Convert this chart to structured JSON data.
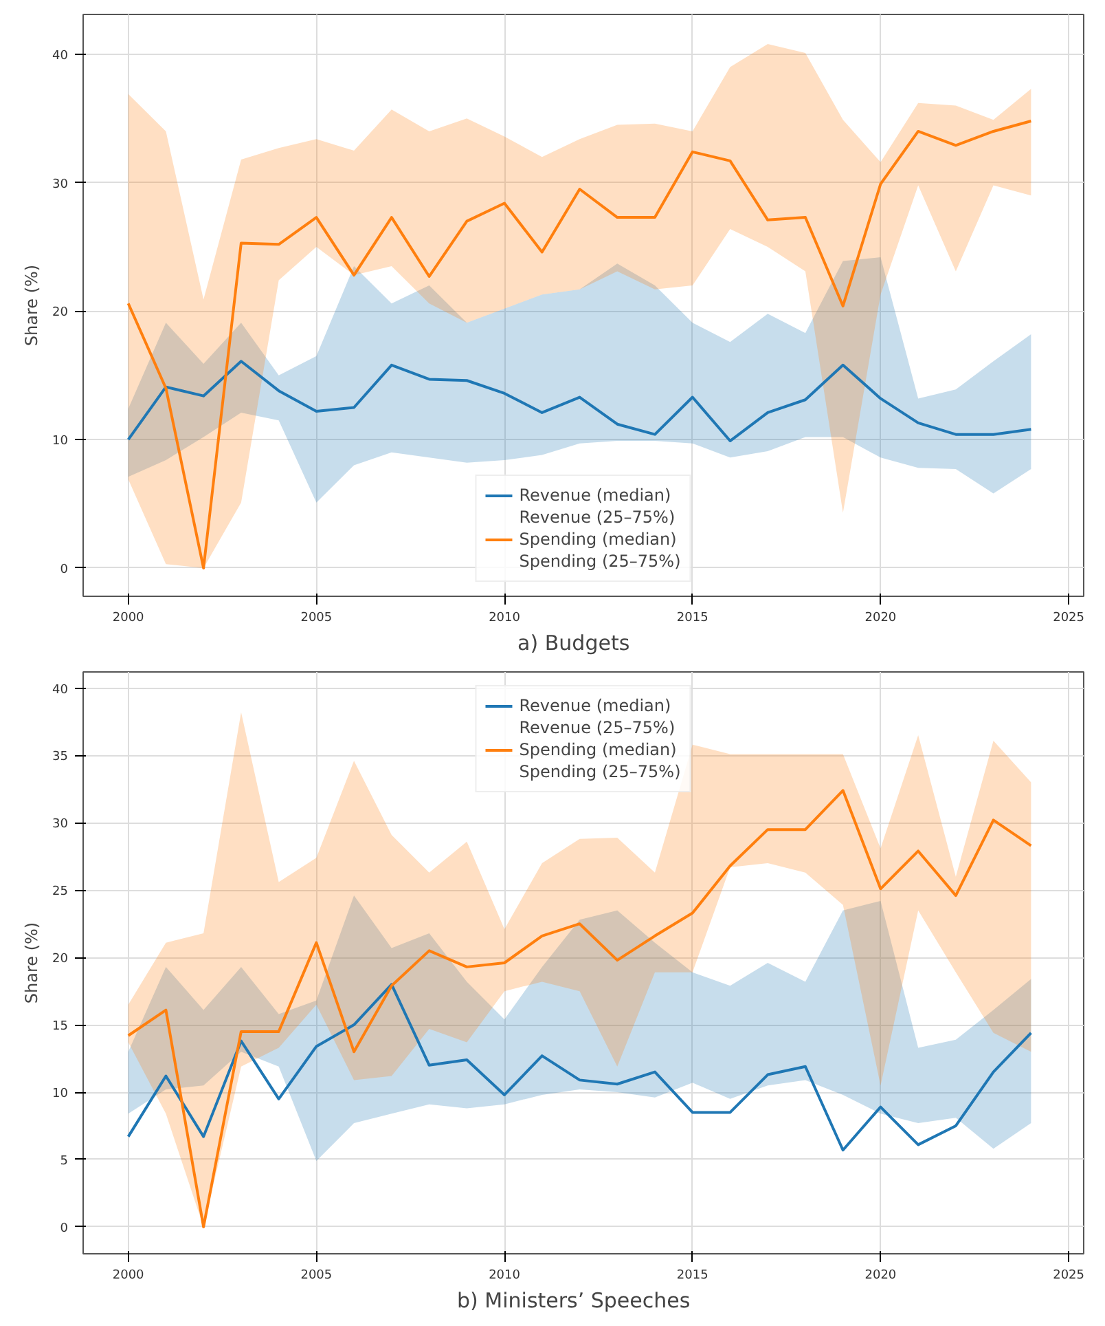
{
  "chart_data": [
    {
      "type": "line",
      "title": "a)    Budgets",
      "ylabel": "Share (%)",
      "annotations": [
        "Revenue (25–75%)",
        "Spending (25–75%)"
      ],
      "x": [
        2000,
        2001,
        2002,
        2003,
        2004,
        2005,
        2006,
        2007,
        2008,
        2009,
        2010,
        2011,
        2012,
        2013,
        2014,
        2015,
        2016,
        2017,
        2018,
        2019,
        2020,
        2021,
        2022,
        2023,
        2024
      ],
      "xlim": [
        1998.8,
        2025.4
      ],
      "xticks": [
        2000,
        2005,
        2010,
        2015,
        2020,
        2025
      ],
      "ylim": [
        -2.2,
        43.1
      ],
      "yticks": [
        0,
        10,
        20,
        30,
        40
      ],
      "grid": true,
      "legend": "bottom",
      "line_style": "solid",
      "marker": "none",
      "series": [
        {
          "name": "Revenue (median)",
          "color": "#1f77b4",
          "values": [
            10.0,
            14.1,
            13.4,
            16.1,
            13.8,
            12.2,
            12.5,
            15.8,
            14.7,
            14.6,
            13.6,
            12.1,
            13.3,
            11.2,
            10.4,
            13.3,
            9.9,
            12.1,
            13.1,
            15.8,
            13.2,
            11.3,
            10.4,
            10.4,
            10.8
          ],
          "lower": [
            7.1,
            8.4,
            10.2,
            12.1,
            11.5,
            5.1,
            8.0,
            9.0,
            8.6,
            8.2,
            8.4,
            8.8,
            9.7,
            9.9,
            9.9,
            9.7,
            8.6,
            9.1,
            10.2,
            10.2,
            8.6,
            7.8,
            7.7,
            5.8,
            7.7
          ],
          "upper": [
            12.4,
            19.1,
            15.9,
            19.1,
            15.0,
            16.5,
            23.5,
            20.6,
            22.0,
            19.1,
            20.2,
            21.3,
            21.7,
            23.7,
            22.0,
            19.1,
            17.6,
            19.8,
            18.3,
            23.9,
            24.2,
            13.2,
            13.9,
            16.1,
            18.2
          ]
        },
        {
          "name": "Spending (median)",
          "color": "#ff7f0e",
          "values": [
            20.6,
            14.0,
            0.0,
            25.3,
            25.2,
            27.3,
            22.8,
            27.3,
            22.7,
            27.0,
            28.4,
            24.6,
            29.5,
            27.3,
            27.3,
            32.4,
            31.7,
            27.1,
            27.3,
            20.4,
            29.9,
            34.0,
            32.9,
            34.0,
            34.8
          ],
          "lower": [
            6.9,
            0.3,
            0.0,
            5.1,
            22.4,
            25.0,
            22.8,
            23.5,
            20.6,
            19.1,
            20.2,
            21.3,
            21.7,
            23.1,
            21.7,
            22.0,
            26.4,
            25.0,
            23.1,
            4.3,
            21.3,
            29.8,
            23.1,
            29.8,
            29.0
          ],
          "upper": [
            36.9,
            34.0,
            20.9,
            31.8,
            32.7,
            33.4,
            32.5,
            35.7,
            34.0,
            35.0,
            33.6,
            32.0,
            33.4,
            34.5,
            34.6,
            34.0,
            39.0,
            40.8,
            40.1,
            34.9,
            31.6,
            36.2,
            36.0,
            34.9,
            37.3
          ]
        }
      ]
    },
    {
      "type": "line",
      "title": "b)    Ministers’ Speeches",
      "ylabel": "Share (%)",
      "annotations": [
        "Revenue (25–75%)",
        "Spending (25–75%)"
      ],
      "x": [
        2000,
        2001,
        2002,
        2003,
        2004,
        2005,
        2006,
        2007,
        2008,
        2009,
        2010,
        2011,
        2012,
        2013,
        2014,
        2015,
        2016,
        2017,
        2018,
        2019,
        2020,
        2021,
        2022,
        2023,
        2024
      ],
      "xlim": [
        1998.8,
        2025.4
      ],
      "xticks": [
        2000,
        2005,
        2010,
        2015,
        2020,
        2025
      ],
      "ylim": [
        -2.0,
        41.2
      ],
      "yticks": [
        0,
        5,
        10,
        15,
        20,
        25,
        30,
        35,
        40
      ],
      "grid": true,
      "legend": "top",
      "line_style": "solid",
      "marker": "none",
      "series": [
        {
          "name": "Revenue (median)",
          "color": "#1f77b4",
          "values": [
            6.7,
            11.2,
            6.7,
            13.8,
            9.5,
            13.4,
            15.0,
            18.0,
            12.0,
            12.4,
            9.8,
            12.7,
            10.9,
            10.6,
            11.5,
            8.5,
            8.5,
            11.3,
            11.9,
            5.7,
            8.9,
            6.1,
            7.5,
            11.5,
            14.4
          ],
          "lower": [
            8.4,
            10.2,
            10.5,
            13.0,
            11.9,
            4.9,
            7.7,
            8.4,
            9.1,
            8.8,
            9.1,
            9.8,
            10.2,
            10.0,
            9.6,
            10.7,
            9.5,
            10.5,
            10.9,
            9.8,
            8.4,
            7.7,
            8.1,
            5.8,
            7.7
          ],
          "upper": [
            13.0,
            19.3,
            16.1,
            19.3,
            15.8,
            16.8,
            24.6,
            20.7,
            21.8,
            18.2,
            15.4,
            19.3,
            22.8,
            23.5,
            21.1,
            18.9,
            17.9,
            19.6,
            18.2,
            23.5,
            24.2,
            13.3,
            13.9,
            16.1,
            18.4
          ]
        },
        {
          "name": "Spending (median)",
          "color": "#ff7f0e",
          "values": [
            14.2,
            16.1,
            0.0,
            14.5,
            14.5,
            21.1,
            13.0,
            17.9,
            20.5,
            19.3,
            19.6,
            21.6,
            22.5,
            19.8,
            21.6,
            23.3,
            26.8,
            29.5,
            29.5,
            32.4,
            25.1,
            27.9,
            24.6,
            30.2,
            28.3
          ],
          "lower": [
            13.7,
            8.4,
            0.0,
            11.9,
            13.3,
            16.5,
            10.9,
            11.2,
            14.7,
            13.7,
            17.5,
            18.2,
            17.5,
            11.9,
            18.9,
            18.9,
            26.7,
            27.0,
            26.3,
            23.9,
            10.5,
            23.5,
            18.9,
            14.4,
            13.0
          ],
          "upper": [
            16.5,
            21.1,
            21.8,
            38.2,
            25.6,
            27.4,
            34.6,
            29.1,
            26.3,
            28.6,
            22.1,
            27.0,
            28.8,
            28.9,
            26.3,
            35.8,
            35.1,
            35.1,
            35.1,
            35.1,
            28.1,
            36.5,
            26.0,
            36.1,
            33.0
          ]
        }
      ]
    }
  ]
}
